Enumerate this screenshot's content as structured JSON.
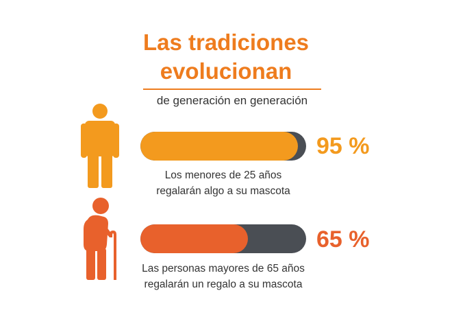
{
  "colors": {
    "orange": "#F39A1E",
    "orange_red": "#E8612C",
    "track": "#4A4E54",
    "title": "#EE7C1E"
  },
  "title_line1": "Las tradiciones",
  "title_line2": "evolucionan",
  "subtitle": "de generación en generación",
  "icons": [
    "young-person-icon",
    "elderly-person-with-cane-icon"
  ],
  "chart_data": {
    "type": "bar",
    "unit": "%",
    "categories": [
      "Los menores de 25 años",
      "Las personas mayores de 65 años"
    ],
    "values": [
      95,
      65
    ],
    "ylim": [
      0,
      100
    ],
    "items": [
      {
        "value": 95,
        "value_label": "95 %",
        "caption_line1": "Los menores de 25 años",
        "caption_line2": "regalarán algo a su mascota",
        "color": "#F39A1E"
      },
      {
        "value": 65,
        "value_label": "65 %",
        "caption_line1": "Las personas mayores de 65 años",
        "caption_line2": "regalarán un regalo a su mascota",
        "color": "#E8612C"
      }
    ]
  }
}
